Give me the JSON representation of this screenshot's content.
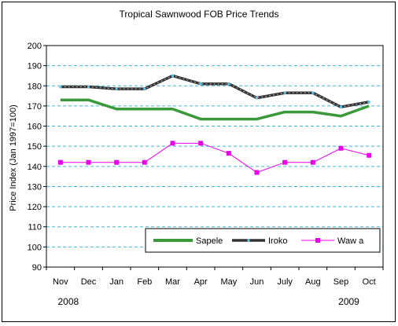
{
  "chart_data": {
    "type": "line",
    "title": "Tropical Sawnwood FOB Price Trends",
    "ylabel": "Price Index (Jan 1997=100)",
    "xlabel": "",
    "ylim": [
      90,
      200
    ],
    "ytick_step": 10,
    "grid": "horizontal dashed",
    "legend_position": "bottom-right",
    "categories": [
      "Nov",
      "Dec",
      "Jan",
      "Feb",
      "Mar",
      "Apr",
      "May",
      "Jun",
      "July",
      "Aug",
      "Sep",
      "Oct"
    ],
    "year_labels": [
      {
        "label": "2008",
        "category_index": 0
      },
      {
        "label": "2009",
        "category_index": 10
      }
    ],
    "series": [
      {
        "name": "Sapele",
        "color": "#3a9a3a",
        "style": "thick-line",
        "values": [
          173,
          173,
          168.5,
          168.5,
          168.5,
          163.5,
          163.5,
          163.5,
          167,
          167,
          165,
          170
        ]
      },
      {
        "name": "Iroko",
        "color": "#000000",
        "style": "dark-line-with-cyan-markers",
        "marker_color": "#5bc8e8",
        "values": [
          179.5,
          179.5,
          178.5,
          178.5,
          185,
          181,
          181,
          174,
          176.5,
          176.5,
          169.5,
          172
        ]
      },
      {
        "name": "Waw a",
        "color": "#e800e8",
        "style": "line-with-square-markers",
        "values": [
          142,
          142,
          142,
          142,
          151.5,
          151.5,
          146.5,
          137,
          142,
          142,
          149,
          145.5
        ]
      }
    ]
  }
}
